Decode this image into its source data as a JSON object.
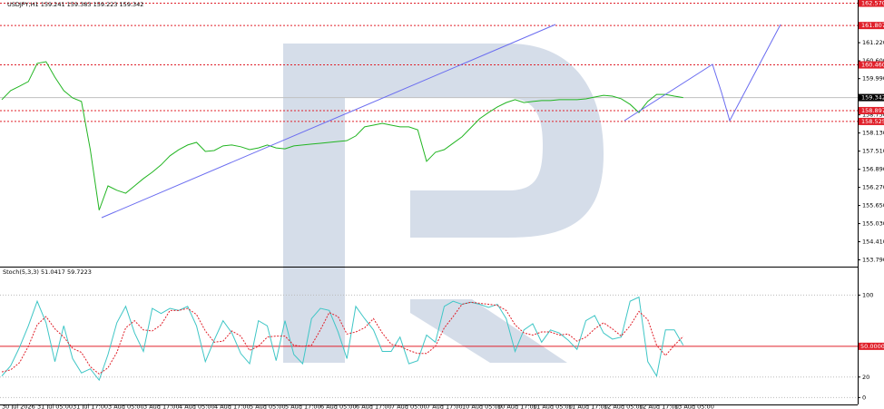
{
  "chart_data": [
    {
      "type": "line",
      "title": "USDJPY,H1  159.241 159.383 159.223 159.342",
      "color": "#22b522",
      "categories": [
        "30 Jul 2026",
        null,
        null,
        null,
        "31 Jul 05:00",
        null,
        null,
        null,
        "31 Jul 17:00",
        null,
        null,
        null,
        "3 Aug 05:00",
        null,
        null,
        null,
        "3 Aug 17:00",
        null,
        null,
        null,
        "4 Aug 05:00",
        null,
        null,
        null,
        "4 Aug 17:00",
        null,
        null,
        null,
        "5 Aug 05:00",
        null,
        null,
        null,
        "5 Aug 17:00",
        null,
        null,
        null,
        "6 Aug 05:00",
        null,
        null,
        null,
        "6 Aug 17:00",
        null,
        null,
        null,
        "7 Aug 05:00",
        null,
        null,
        null,
        "7 Aug 17:00",
        null,
        null,
        null,
        "10 Aug 05:00",
        null,
        null,
        null,
        "10 Aug 17:00",
        null,
        null,
        null,
        "11 Aug 05:00",
        null,
        null,
        null,
        "11 Aug 17:00",
        null,
        null,
        null,
        "12 Aug 05:00",
        null,
        null,
        null,
        "12 Aug 17:00",
        null,
        null,
        null,
        "13 Aug 05:00",
        null
      ],
      "values": [
        159.27,
        159.58,
        159.73,
        159.89,
        160.51,
        160.57,
        160.04,
        159.58,
        159.33,
        159.21,
        157.56,
        155.49,
        156.32,
        156.17,
        156.07,
        156.32,
        156.57,
        156.79,
        157.04,
        157.35,
        157.56,
        157.72,
        157.81,
        157.5,
        157.53,
        157.69,
        157.72,
        157.66,
        157.56,
        157.62,
        157.72,
        157.62,
        157.59,
        157.69,
        157.72,
        157.75,
        157.78,
        157.81,
        157.84,
        157.87,
        158.03,
        158.34,
        158.4,
        158.46,
        158.4,
        158.34,
        158.34,
        158.24,
        157.16,
        157.47,
        157.56,
        157.78,
        158.0,
        158.31,
        158.62,
        158.83,
        159.02,
        159.17,
        159.27,
        159.17,
        159.21,
        159.24,
        159.24,
        159.27,
        159.27,
        159.27,
        159.3,
        159.36,
        159.42,
        159.39,
        159.3,
        159.11,
        158.83,
        159.21,
        159.45,
        159.45,
        159.39,
        159.342
      ],
      "ylim": [
        153.59,
        162.68
      ],
      "yticks": [
        {
          "value": 161.22,
          "label": "161.220"
        },
        {
          "value": 160.6,
          "label": "160.600"
        },
        {
          "value": 159.99,
          "label": "159.990"
        },
        {
          "value": 158.75,
          "label": "158.750"
        },
        {
          "value": 158.13,
          "label": "158.130"
        },
        {
          "value": 157.51,
          "label": "157.510"
        },
        {
          "value": 156.89,
          "label": "156.890"
        },
        {
          "value": 156.27,
          "label": "156.270"
        },
        {
          "value": 155.65,
          "label": "155.650"
        },
        {
          "value": 155.03,
          "label": "155.030"
        },
        {
          "value": 154.41,
          "label": "154.410"
        },
        {
          "value": 153.79,
          "label": "153.790"
        }
      ],
      "levels": [
        {
          "value": 162.57,
          "label": "162.570"
        },
        {
          "value": 161.807,
          "label": "161.807"
        },
        {
          "value": 160.46,
          "label": "160.460"
        },
        {
          "value": 158.897,
          "label": "158.897"
        },
        {
          "value": 158.525,
          "label": "158.525"
        }
      ],
      "level_color": "#e0202a",
      "last_price": {
        "value": 159.342,
        "label": "159.342"
      }
    },
    {
      "type": "line",
      "title": "Stoch(5,3,3) 51.0417 59.7223",
      "series": [
        {
          "color": "#3fc6c6",
          "values": [
            21,
            31,
            49,
            70,
            94,
            73,
            35,
            70,
            38,
            24,
            28,
            17,
            42,
            73,
            89,
            63,
            45,
            87,
            82,
            87,
            85,
            89,
            70,
            35,
            56,
            75,
            63,
            43,
            33,
            75,
            70,
            36,
            75,
            42,
            33,
            77,
            87,
            85,
            64,
            38,
            89,
            77,
            66,
            45,
            45,
            59,
            33,
            36,
            61,
            54,
            89,
            94,
            91,
            93,
            91,
            88,
            91,
            77,
            45,
            66,
            72,
            54,
            66,
            63,
            56,
            47,
            75,
            80,
            63,
            57,
            59,
            94,
            98,
            35,
            21,
            66,
            66,
            51.0417
          ]
        },
        {
          "color": "#e0202a",
          "dashed": true,
          "values": [
            25,
            27,
            34,
            50,
            71,
            79,
            67,
            59,
            48,
            44,
            30,
            23,
            29,
            44,
            68,
            75,
            66,
            65,
            71,
            85,
            85,
            87,
            81,
            65,
            54,
            55,
            65,
            60,
            46,
            50,
            59,
            60,
            60,
            51,
            50,
            51,
            66,
            83,
            79,
            62,
            64,
            68,
            77,
            63,
            52,
            50,
            46,
            43,
            43,
            50,
            68,
            79,
            91,
            93,
            92,
            91,
            90,
            85,
            71,
            63,
            61,
            64,
            64,
            61,
            62,
            55,
            59,
            67,
            73,
            67,
            60,
            70,
            84,
            76,
            51,
            41,
            51,
            59.7223
          ]
        }
      ],
      "ylim": [
        -5,
        126
      ],
      "yticks": [
        100,
        20,
        0
      ],
      "signal_level": {
        "value": 50,
        "label": "50.0000"
      }
    }
  ]
}
